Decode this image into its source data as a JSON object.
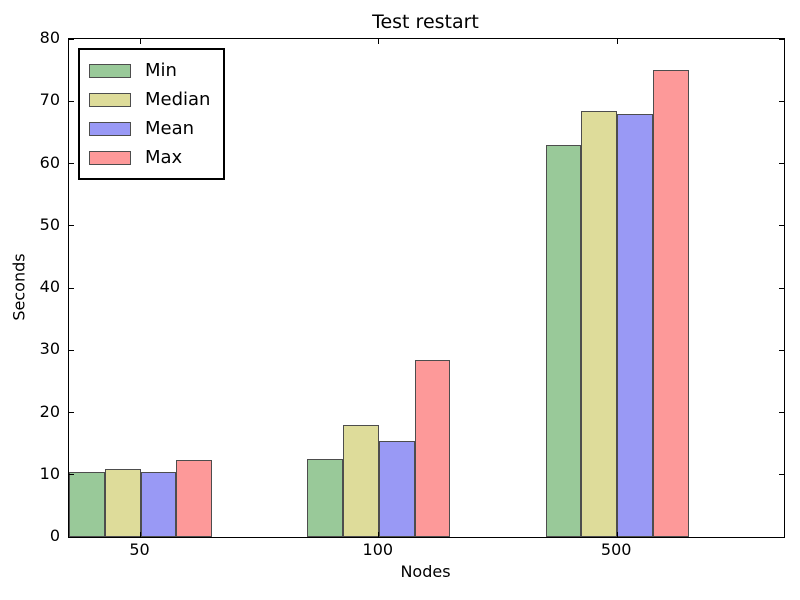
{
  "chart_data": {
    "type": "bar",
    "title": "Test restart",
    "xlabel": "Nodes",
    "ylabel": "Seconds",
    "categories": [
      "50",
      "100",
      "500"
    ],
    "series": [
      {
        "name": "Min",
        "color": "#99c999",
        "values": [
          10.5,
          12.5,
          63.0
        ]
      },
      {
        "name": "Median",
        "color": "#dedc9a",
        "values": [
          11.0,
          18.0,
          68.5
        ]
      },
      {
        "name": "Mean",
        "color": "#9999f5",
        "values": [
          10.4,
          15.4,
          68.0
        ]
      },
      {
        "name": "Max",
        "color": "#fd9999",
        "values": [
          12.4,
          28.5,
          75.0
        ]
      }
    ],
    "ylim": [
      0,
      80
    ],
    "ytick_step": 10,
    "ytick_labels": [
      "0",
      "10",
      "20",
      "30",
      "40",
      "50",
      "60",
      "70",
      "80"
    ],
    "grid": false,
    "legend_position": "upper left",
    "bar_edge_color": "#4d4d4d",
    "axis_color": "#000000"
  }
}
